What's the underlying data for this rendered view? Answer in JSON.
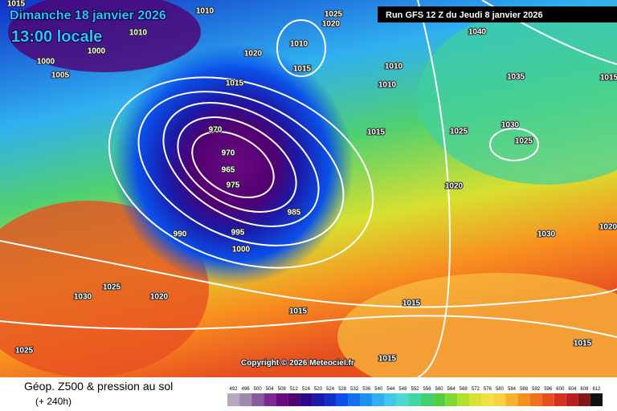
{
  "header": {
    "date": "Dimanche 18 janvier 2026",
    "time": "13:00 locale",
    "run": "Run GFS 12 Z du Jeudi 8 janvier 2026"
  },
  "isobar_labels": [
    "1015",
    "1010",
    "1025",
    "1020",
    "1010",
    "1000",
    "1000",
    "1005",
    "1010",
    "1020",
    "1015",
    "1010",
    "1010",
    "1040",
    "1035",
    "1015",
    "1015",
    "1030",
    "1025",
    "1015",
    "1025",
    "1020",
    "970",
    "970",
    "965",
    "975",
    "985",
    "990",
    "995",
    "1000",
    "1030",
    "1020",
    "1025",
    "1030",
    "1020",
    "1015",
    "1015",
    "1015",
    "1015",
    "1025",
    "1015"
  ],
  "copyright": "Copyright © 2026 Meteociel.fr",
  "footer": {
    "title": "Géop. Z500 & pression au sol",
    "lead": "(+ 240h)"
  },
  "legend": {
    "values": [
      492,
      496,
      500,
      504,
      508,
      512,
      516,
      520,
      524,
      528,
      532,
      536,
      540,
      544,
      548,
      552,
      556,
      560,
      564,
      568,
      572,
      576,
      580,
      584,
      588,
      592,
      596,
      600,
      604,
      608,
      612
    ],
    "colors": [
      "#b8a8c0",
      "#a088b0",
      "#8a5aa0",
      "#7a2a90",
      "#6a0a80",
      "#500070",
      "#2a0a8a",
      "#1a1aa8",
      "#1030c8",
      "#0a50e8",
      "#1070f0",
      "#2090f0",
      "#30b0f0",
      "#40c8e8",
      "#50d8d0",
      "#40d8a0",
      "#40d070",
      "#50d040",
      "#80d830",
      "#b0e030",
      "#d8e030",
      "#f0e040",
      "#f8d040",
      "#f8b030",
      "#f89020",
      "#f07020",
      "#e85020",
      "#d83020",
      "#b82020",
      "#801818",
      "#101010"
    ]
  }
}
